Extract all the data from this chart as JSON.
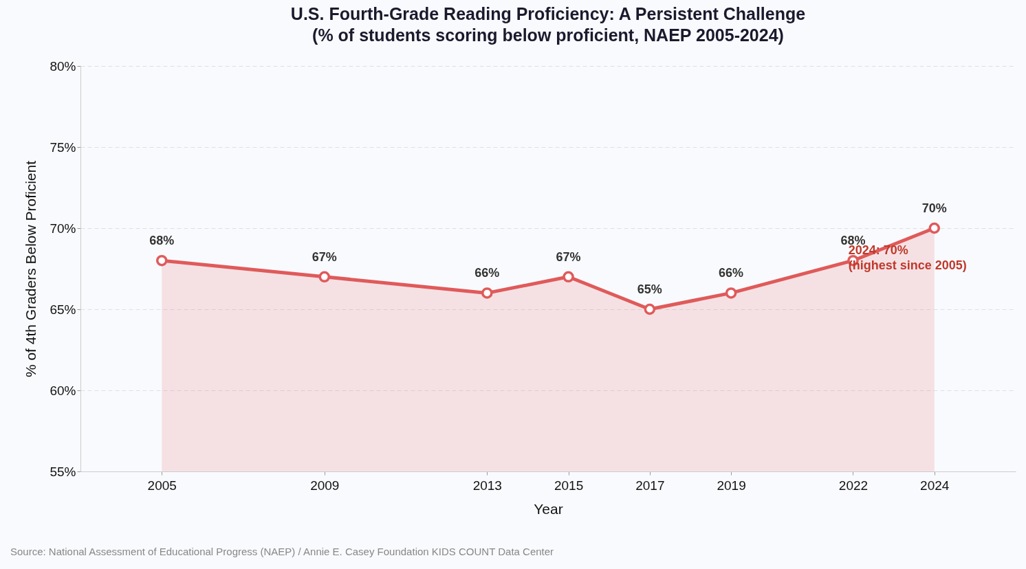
{
  "chart_data": {
    "type": "area",
    "title": [
      "U.S. Fourth-Grade Reading Proficiency: A Persistent Challenge",
      "(% of students scoring below proficient, NAEP 2005-2024)"
    ],
    "xlabel": "Year",
    "ylabel": "% of 4th Graders Below Proficient",
    "x": [
      2005,
      2009,
      2013,
      2015,
      2017,
      2019,
      2022,
      2024
    ],
    "series": [
      {
        "color": "#e05a5a",
        "values": [
          68,
          67,
          66,
          67,
          65,
          66,
          68,
          70
        ],
        "value_labels": [
          "68%",
          "67%",
          "66%",
          "67%",
          "65%",
          "66%",
          "68%",
          "70%"
        ]
      }
    ],
    "xlim": [
      2003,
      2026
    ],
    "xticks": [
      2005,
      2009,
      2013,
      2015,
      2017,
      2019,
      2022,
      2024
    ],
    "ylim": [
      55,
      80
    ],
    "yticks": [
      {
        "value": 55,
        "label": "55%"
      },
      {
        "value": 60,
        "label": "60%"
      },
      {
        "value": 65,
        "label": "65%"
      },
      {
        "value": 70,
        "label": "70%"
      },
      {
        "value": 75,
        "label": "75%"
      },
      {
        "value": 80,
        "label": "80%"
      }
    ],
    "grid": "y",
    "marker": "circle",
    "line_style": "solid",
    "annotations": [
      {
        "text": "2024: 70%\n(highest since 2005)",
        "x": 2024,
        "y": 70
      },
      "Source: National Assessment of Educational Progress (NAEP) / Annie E. Casey Foundation KIDS COUNT Data Center"
    ]
  }
}
